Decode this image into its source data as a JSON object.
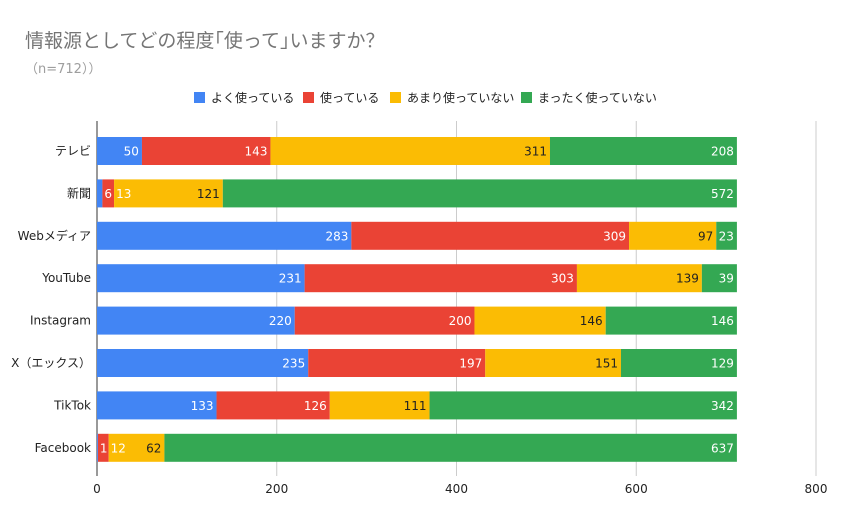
{
  "title": "情報源としてどの程度｢使って｣いますか？",
  "subtitle": "（n=712））",
  "chart_data": {
    "type": "bar",
    "orientation": "horizontal",
    "stacked": true,
    "title": "情報源としてどの程度｢使って｣いますか？",
    "subtitle": "（n=712））",
    "categories": [
      "テレビ",
      "新聞",
      "Webメディア",
      "YouTube",
      "Instagram",
      "X（エックス）",
      "TikTok",
      "Facebook"
    ],
    "series": [
      {
        "name": "よく使っている",
        "color": "#4285F4",
        "values": [
          50,
          6,
          283,
          231,
          220,
          235,
          133,
          1
        ]
      },
      {
        "name": "使っている",
        "color": "#EA4335",
        "values": [
          143,
          13,
          309,
          303,
          200,
          197,
          126,
          12
        ]
      },
      {
        "name": "あまり使っていない",
        "color": "#FBBC04",
        "values": [
          311,
          121,
          97,
          139,
          146,
          151,
          111,
          62
        ]
      },
      {
        "name": "まったく使っていない",
        "color": "#34A853",
        "values": [
          208,
          572,
          23,
          39,
          146,
          129,
          342,
          637
        ]
      }
    ],
    "xlim": [
      0,
      800
    ],
    "xticks": [
      0,
      200,
      400,
      600,
      800
    ],
    "grid": true,
    "legend": "top"
  }
}
